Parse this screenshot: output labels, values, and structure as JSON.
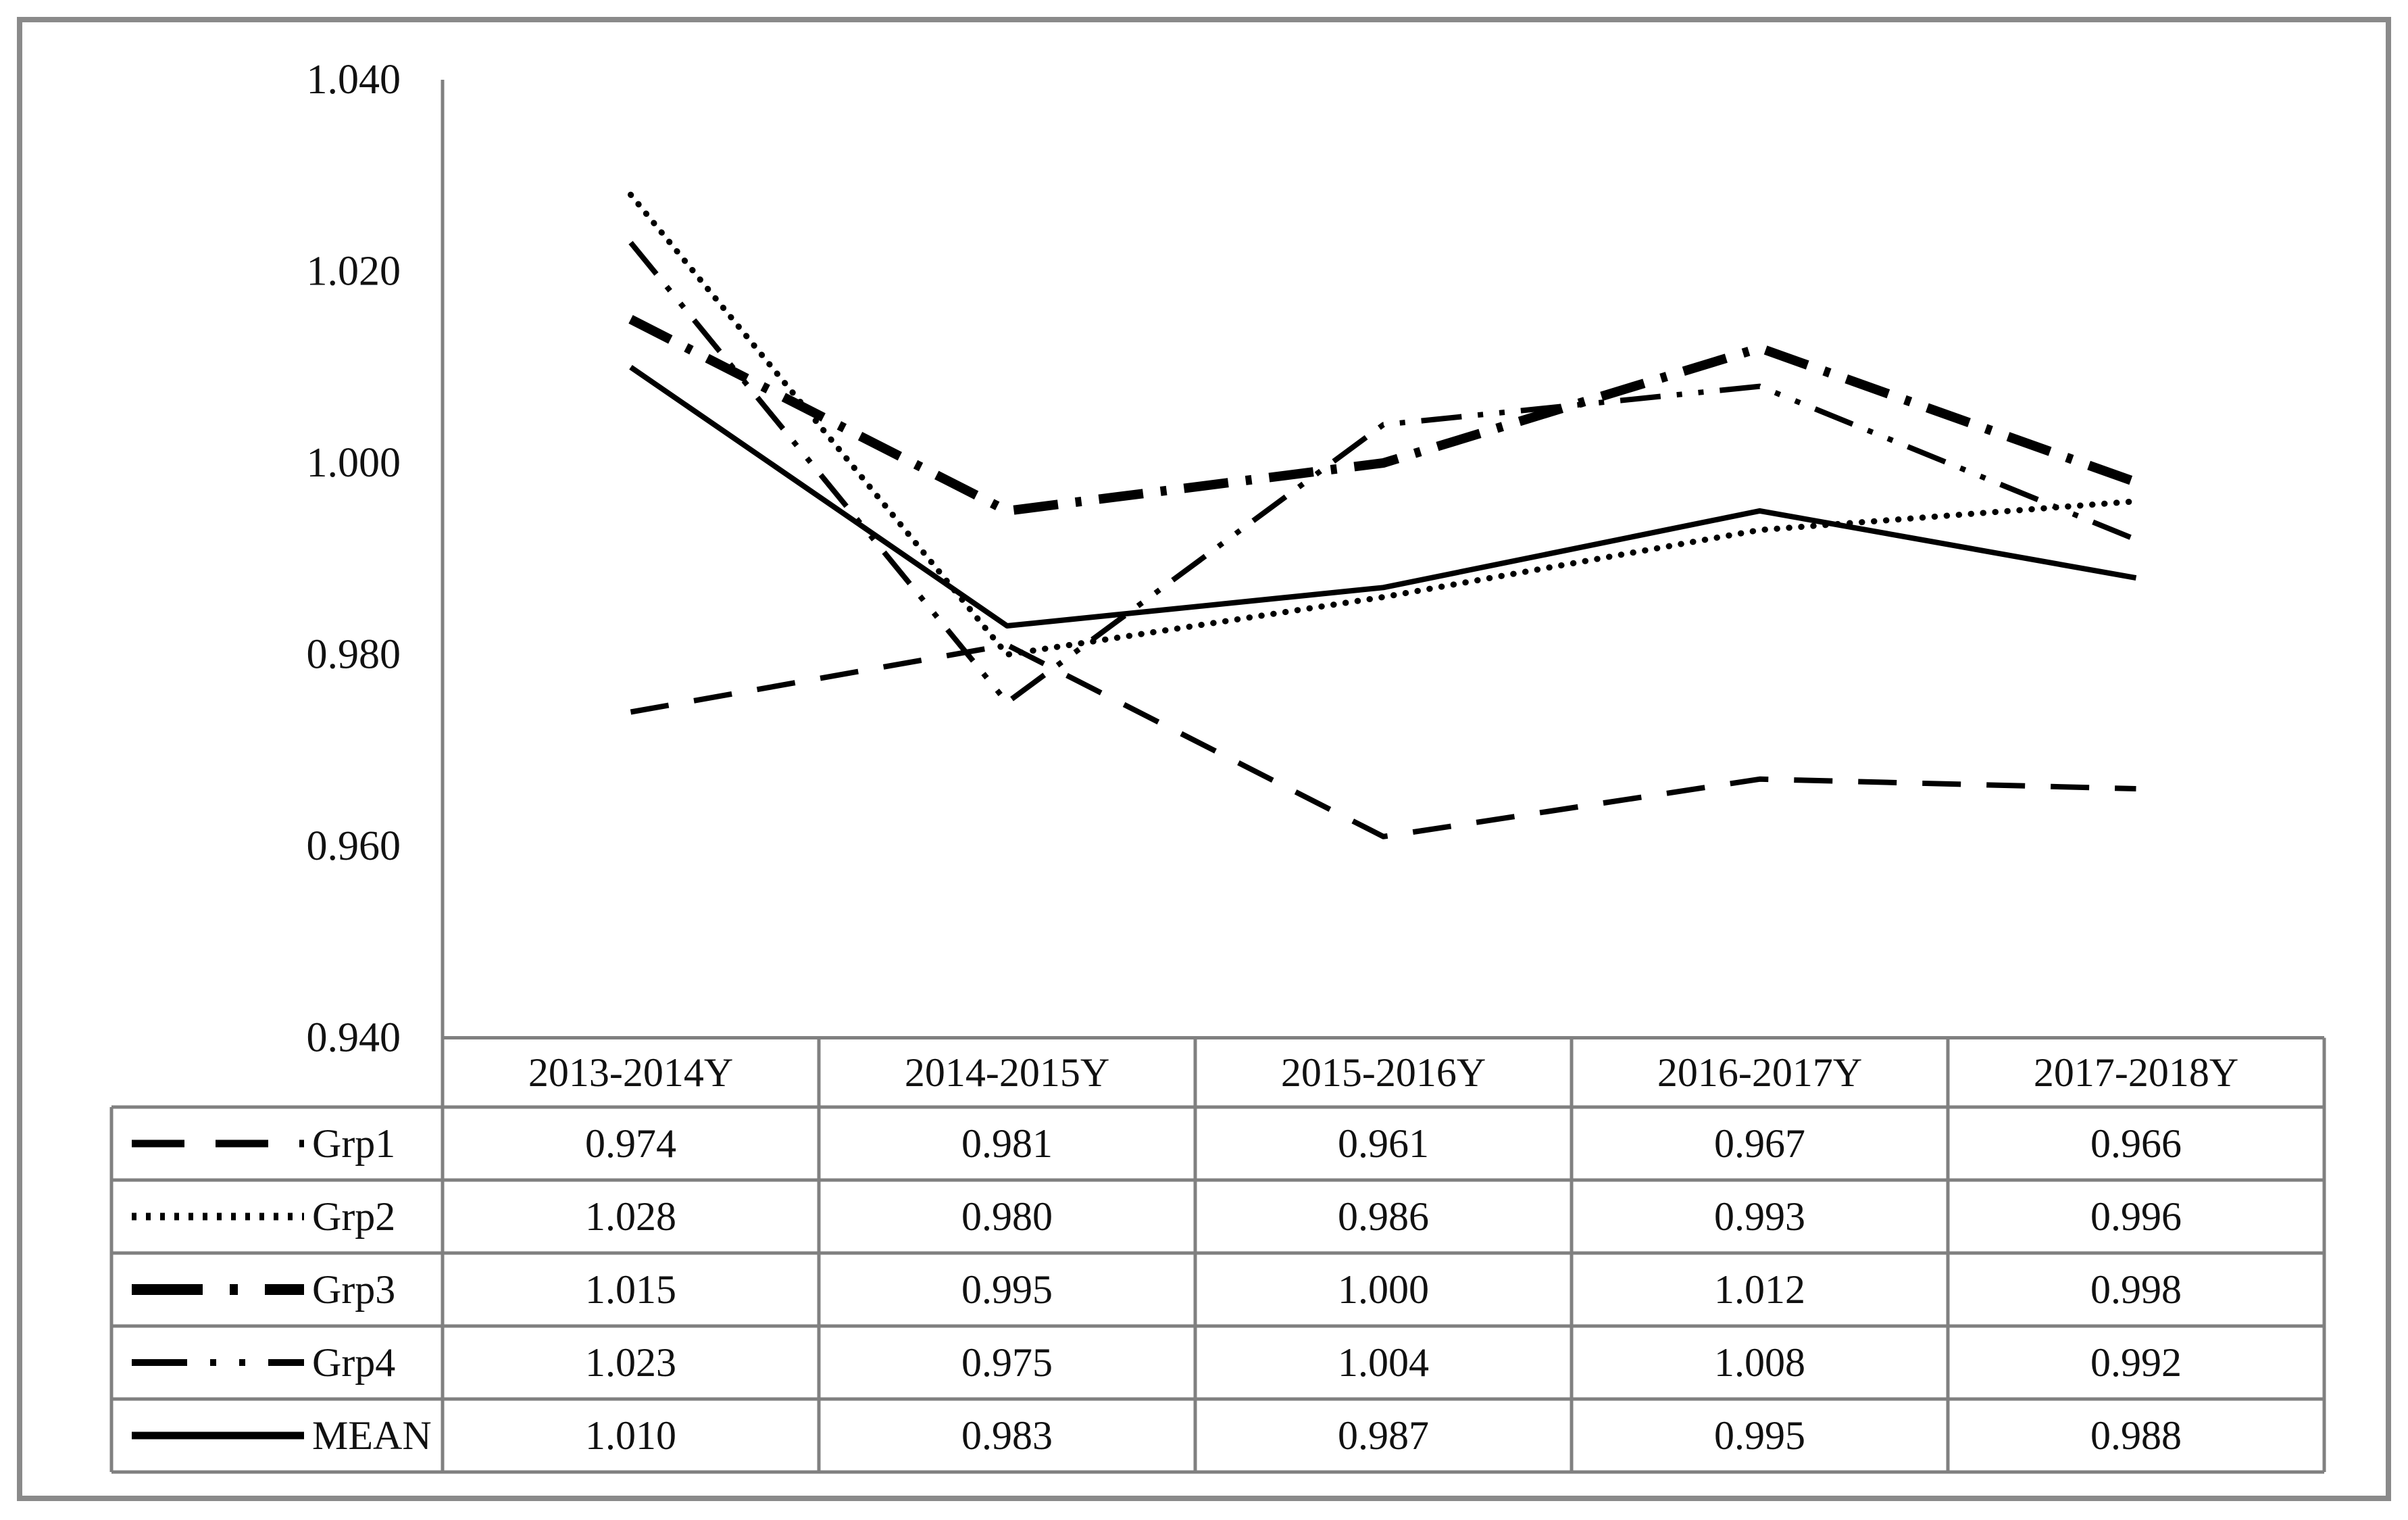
{
  "figure": {
    "background": "#ffffff",
    "frame_border_color": "#8a8a8a"
  },
  "chart_data": {
    "type": "line",
    "title": "",
    "xlabel": "",
    "ylabel": "",
    "categories": [
      "2013-2014Y",
      "2014-2015Y",
      "2015-2016Y",
      "2016-2017Y",
      "2017-2018Y"
    ],
    "series": [
      {
        "name": "Grp1",
        "line_style": "dashed",
        "values": [
          0.974,
          0.981,
          0.961,
          0.967,
          0.966
        ]
      },
      {
        "name": "Grp2",
        "line_style": "dotted",
        "values": [
          1.028,
          0.98,
          0.986,
          0.993,
          0.996
        ]
      },
      {
        "name": "Grp3",
        "line_style": "dash-dot-thick",
        "values": [
          1.015,
          0.995,
          1.0,
          1.012,
          0.998
        ]
      },
      {
        "name": "Grp4",
        "line_style": "dash-dot-dot",
        "values": [
          1.023,
          0.975,
          1.004,
          1.008,
          0.992
        ]
      },
      {
        "name": "MEAN",
        "line_style": "solid",
        "values": [
          1.01,
          0.983,
          0.987,
          0.995,
          0.988
        ]
      }
    ],
    "ylim": [
      0.94,
      1.04
    ],
    "ytick_step": 0.02,
    "yticks": [
      "1.040",
      "1.020",
      "1.000",
      "0.980",
      "0.960",
      "0.940"
    ],
    "grid": false,
    "legend_position": "table-left-column",
    "series_color": "#000000",
    "axis_color": "#808080",
    "value_format": "fixed3"
  }
}
